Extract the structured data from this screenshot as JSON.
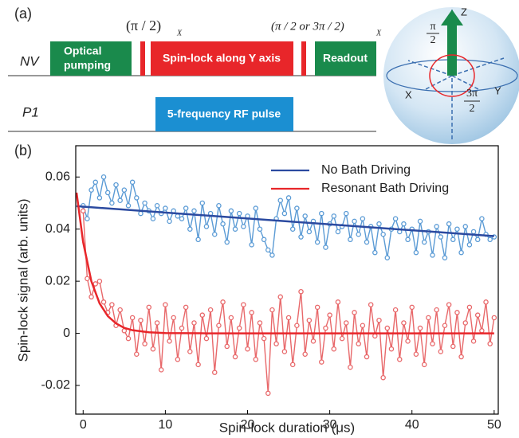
{
  "panel_a": {
    "label": "(a)",
    "rows": [
      {
        "label": "NV"
      },
      {
        "label": "P1"
      }
    ],
    "blocks": {
      "optical_pumping": "Optical pumping",
      "spin_lock": "Spin-lock along Y axis",
      "readout": "Readout",
      "rf_pulse": "5-frequency RF pulse"
    },
    "pulse_1": {
      "text": "(π / 2)",
      "subscript": "X"
    },
    "pulse_2": {
      "text": "(π / 2 or 3π / 2)",
      "subscript": "X"
    },
    "bloch": {
      "z": "Z",
      "x": "X",
      "y": "Y",
      "angle_1": {
        "numerator": "π",
        "denominator": "2"
      },
      "angle_2": {
        "numerator": "3π",
        "denominator": "2"
      }
    }
  },
  "panel_b_label": "(b)",
  "chart_data": {
    "type": "line",
    "x_label": "Spin-lock duration (μs)",
    "y_label": "Spin-lock signal (arb. units)",
    "xlim": [
      -0.9,
      50.5
    ],
    "xticks": [
      0,
      10,
      20,
      30,
      40,
      50
    ],
    "ylim": [
      -0.031,
      0.072
    ],
    "yticks": [
      -0.02,
      0,
      0.02,
      0.04,
      0.06
    ],
    "legend": "upper right",
    "x": [
      0,
      0.5,
      1,
      1.5,
      2,
      2.5,
      3,
      3.5,
      4,
      4.5,
      5,
      5.5,
      6,
      6.5,
      7,
      7.5,
      8,
      8.5,
      9,
      9.5,
      10,
      10.5,
      11,
      11.5,
      12,
      12.5,
      13,
      13.5,
      14,
      14.5,
      15,
      15.5,
      16,
      16.5,
      17,
      17.5,
      18,
      18.5,
      19,
      19.5,
      20,
      20.5,
      21,
      21.5,
      22,
      22.5,
      23,
      23.5,
      24,
      24.5,
      25,
      25.5,
      26,
      26.5,
      27,
      27.5,
      28,
      28.5,
      29,
      29.5,
      30,
      30.5,
      31,
      31.5,
      32,
      32.5,
      33,
      33.5,
      34,
      34.5,
      35,
      35.5,
      36,
      36.5,
      37,
      37.5,
      38,
      38.5,
      39,
      39.5,
      40,
      40.5,
      41,
      41.5,
      42,
      42.5,
      43,
      43.5,
      44,
      44.5,
      45,
      45.5,
      46,
      46.5,
      47,
      47.5,
      48,
      48.5,
      49,
      49.5,
      50
    ],
    "series": [
      {
        "color": "#5b9bd5",
        "marker": "circle",
        "values": [
          0.049,
          0.044,
          0.055,
          0.058,
          0.052,
          0.06,
          0.054,
          0.05,
          0.057,
          0.051,
          0.055,
          0.049,
          0.058,
          0.052,
          0.046,
          0.05,
          0.047,
          0.044,
          0.049,
          0.046,
          0.048,
          0.043,
          0.047,
          0.045,
          0.044,
          0.048,
          0.04,
          0.047,
          0.036,
          0.05,
          0.041,
          0.046,
          0.038,
          0.049,
          0.042,
          0.035,
          0.047,
          0.04,
          0.046,
          0.041,
          0.045,
          0.034,
          0.048,
          0.04,
          0.036,
          0.032,
          0.03,
          0.044,
          0.051,
          0.046,
          0.052,
          0.04,
          0.048,
          0.037,
          0.045,
          0.039,
          0.043,
          0.035,
          0.046,
          0.033,
          0.042,
          0.045,
          0.039,
          0.041,
          0.046,
          0.036,
          0.043,
          0.038,
          0.044,
          0.035,
          0.041,
          0.031,
          0.042,
          0.038,
          0.029,
          0.04,
          0.044,
          0.039,
          0.042,
          0.036,
          0.04,
          0.031,
          0.043,
          0.035,
          0.039,
          0.03,
          0.041,
          0.037,
          0.029,
          0.042,
          0.036,
          0.04,
          0.031,
          0.041,
          0.034,
          0.039,
          0.036,
          0.044,
          0.038,
          0.036,
          0.037
        ]
      },
      {
        "color": "#e8686a",
        "marker": "circle",
        "values": [
          0.047,
          0.021,
          0.014,
          0.019,
          0.02,
          0.012,
          0.008,
          0.011,
          0.003,
          0.009,
          0.001,
          -0.002,
          0.006,
          -0.008,
          0.005,
          -0.004,
          0.01,
          -0.006,
          0.004,
          -0.014,
          0.011,
          -0.003,
          0.006,
          -0.01,
          0.002,
          0.01,
          -0.007,
          0.004,
          -0.012,
          0.007,
          -0.002,
          0.009,
          -0.015,
          0.003,
          0.012,
          -0.005,
          0.006,
          -0.009,
          0.002,
          0.011,
          -0.006,
          0.008,
          -0.01,
          0.004,
          -0.002,
          -0.023,
          0.009,
          -0.004,
          0.014,
          -0.007,
          0.006,
          -0.012,
          0.003,
          0.016,
          -0.008,
          0.005,
          -0.003,
          0.01,
          -0.011,
          0.002,
          0.007,
          -0.006,
          0.012,
          -0.002,
          0.004,
          -0.013,
          0.008,
          -0.004,
          0.003,
          -0.009,
          0.011,
          -0.001,
          0.005,
          -0.017,
          0.002,
          -0.006,
          0.009,
          -0.01,
          0.004,
          -0.003,
          0.01,
          -0.008,
          0.002,
          -0.012,
          0.006,
          -0.004,
          0.009,
          -0.007,
          0.003,
          0.011,
          -0.005,
          0.008,
          -0.009,
          0.004,
          0.01,
          -0.003,
          0.007,
          0.001,
          0.012,
          -0.004,
          0.006
        ]
      },
      {
        "name": "No Bath Driving",
        "color": "#2b4aa0",
        "x": [
          -0.8,
          50
        ],
        "values": [
          0.0488,
          0.0373
        ]
      },
      {
        "name": "Resonant Bath Driving",
        "color": "#e8262a",
        "x": [
          -0.8,
          0,
          1,
          2,
          3,
          4,
          5,
          6,
          8,
          10,
          15,
          20,
          30,
          40,
          50
        ],
        "values": [
          0.054,
          0.035,
          0.02,
          0.0115,
          0.0066,
          0.0038,
          0.0021,
          0.0012,
          0.0004,
          0.0001,
          0,
          0,
          0,
          0,
          0
        ]
      }
    ]
  }
}
